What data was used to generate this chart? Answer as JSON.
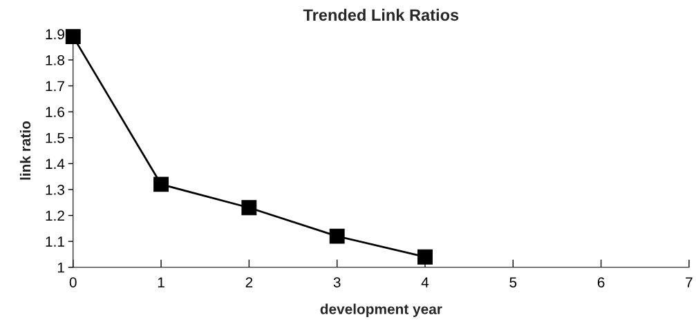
{
  "chart_data": {
    "type": "line",
    "title": "Trended Link Ratios",
    "xlabel": "development year",
    "ylabel": "link ratio",
    "x": [
      0,
      1,
      2,
      3,
      4
    ],
    "series": [
      {
        "color": "#000000",
        "values": [
          1.89,
          1.32,
          1.23,
          1.12,
          1.04
        ]
      }
    ],
    "xlim": [
      0,
      7
    ],
    "xticks": [
      0,
      1,
      2,
      3,
      4,
      5,
      6,
      7
    ],
    "ylim": [
      1,
      1.9
    ],
    "yticks": [
      {
        "value": 1,
        "label": "1"
      },
      1.1,
      1.2,
      1.3,
      1.4,
      1.5,
      1.6,
      1.7,
      1.8,
      1.9
    ],
    "marker": "square",
    "line_style": "solid",
    "grid": false,
    "legend": false
  }
}
